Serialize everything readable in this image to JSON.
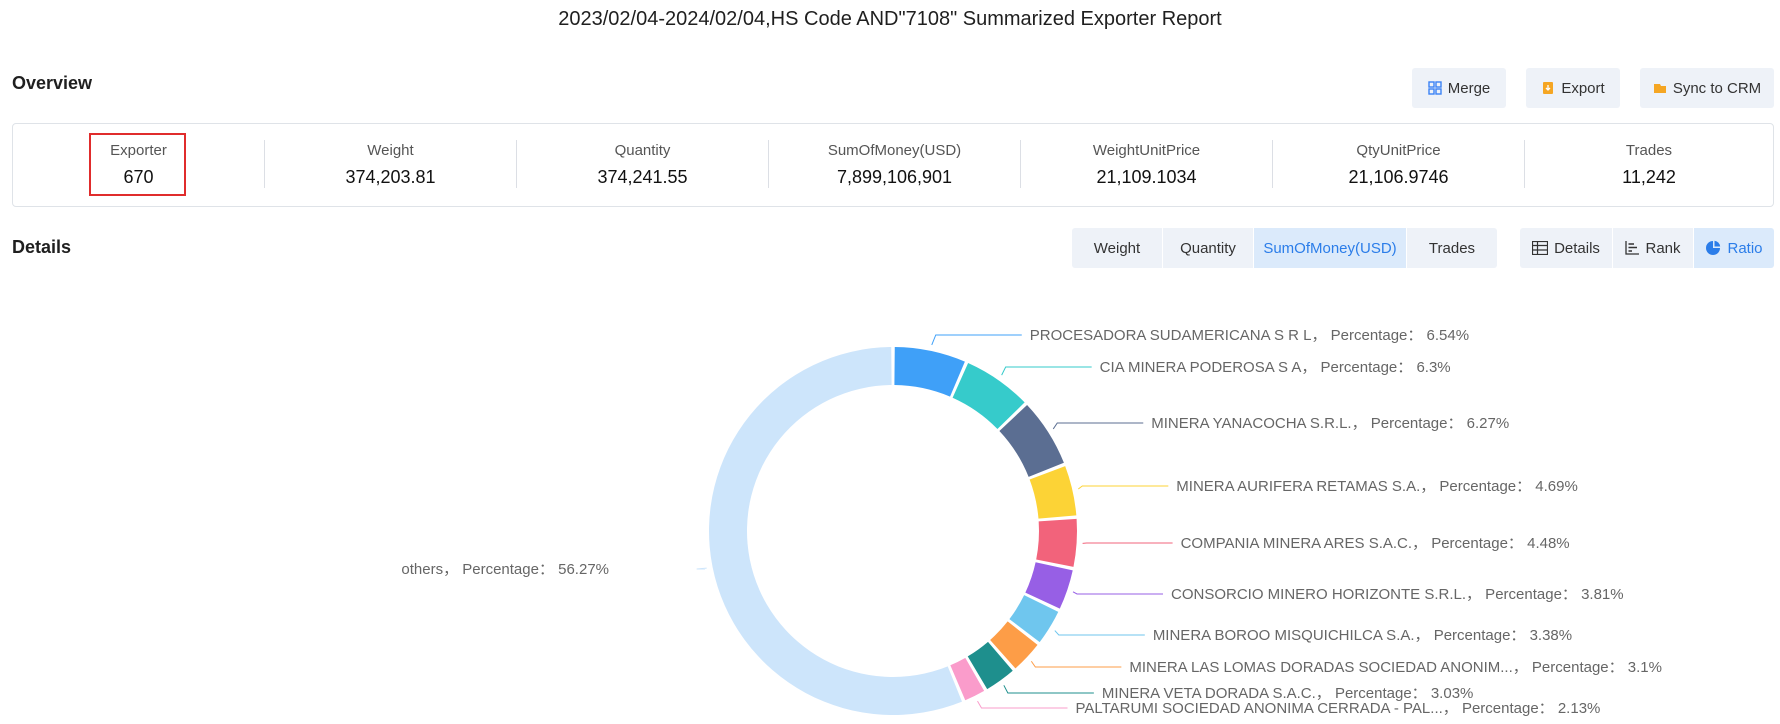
{
  "report_title": "2023/02/04-2024/02/04,HS Code AND\"7108\" Summarized Exporter Report",
  "overview": {
    "title": "Overview",
    "buttons": {
      "merge": "Merge",
      "export": "Export",
      "sync": "Sync to CRM"
    },
    "stats": [
      {
        "label": "Exporter",
        "value": "670"
      },
      {
        "label": "Weight",
        "value": "374,203.81"
      },
      {
        "label": "Quantity",
        "value": "374,241.55"
      },
      {
        "label": "SumOfMoney(USD)",
        "value": "7,899,106,901"
      },
      {
        "label": "WeightUnitPrice",
        "value": "21,109.1034"
      },
      {
        "label": "QtyUnitPrice",
        "value": "21,106.9746"
      },
      {
        "label": "Trades",
        "value": "11,242"
      }
    ]
  },
  "details": {
    "title": "Details",
    "metric_tabs": [
      "Weight",
      "Quantity",
      "SumOfMoney(USD)",
      "Trades"
    ],
    "active_metric": "SumOfMoney(USD)",
    "view_tabs": [
      "Details",
      "Rank",
      "Ratio"
    ],
    "active_view": "Ratio"
  },
  "chart_data": {
    "type": "pie",
    "donut": true,
    "label_format": "{name}， Percentage： {value}%",
    "slices": [
      {
        "name": "PROCESADORA SUDAMERICANA S R L",
        "value": 6.54,
        "color": "#3fa0f8"
      },
      {
        "name": "CIA MINERA PODEROSA S A",
        "value": 6.3,
        "color": "#36cbcb"
      },
      {
        "name": "MINERA YANACOCHA S.R.L.",
        "value": 6.27,
        "color": "#5b6e92"
      },
      {
        "name": "MINERA AURIFERA RETAMAS S.A.",
        "value": 4.69,
        "color": "#fcd336"
      },
      {
        "name": "COMPANIA MINERA ARES S.A.C.",
        "value": 4.48,
        "color": "#f2637b"
      },
      {
        "name": "CONSORCIO MINERO HORIZONTE S.R.L.",
        "value": 3.81,
        "color": "#975fe5"
      },
      {
        "name": "MINERA BOROO MISQUICHILCA S.A.",
        "value": 3.38,
        "color": "#6fc6ee"
      },
      {
        "name": "MINERA LAS LOMAS DORADAS SOCIEDAD ANONIM...",
        "value": 3.1,
        "color": "#fd9d47"
      },
      {
        "name": "MINERA VETA DORADA S.A.C.",
        "value": 3.03,
        "color": "#1e8f8d"
      },
      {
        "name": "PALTARUMI SOCIEDAD ANONIMA CERRADA - PAL...",
        "value": 2.13,
        "color": "#fa9ccb"
      },
      {
        "name": "others",
        "value": 56.27,
        "color": "#cde5fb"
      }
    ]
  }
}
